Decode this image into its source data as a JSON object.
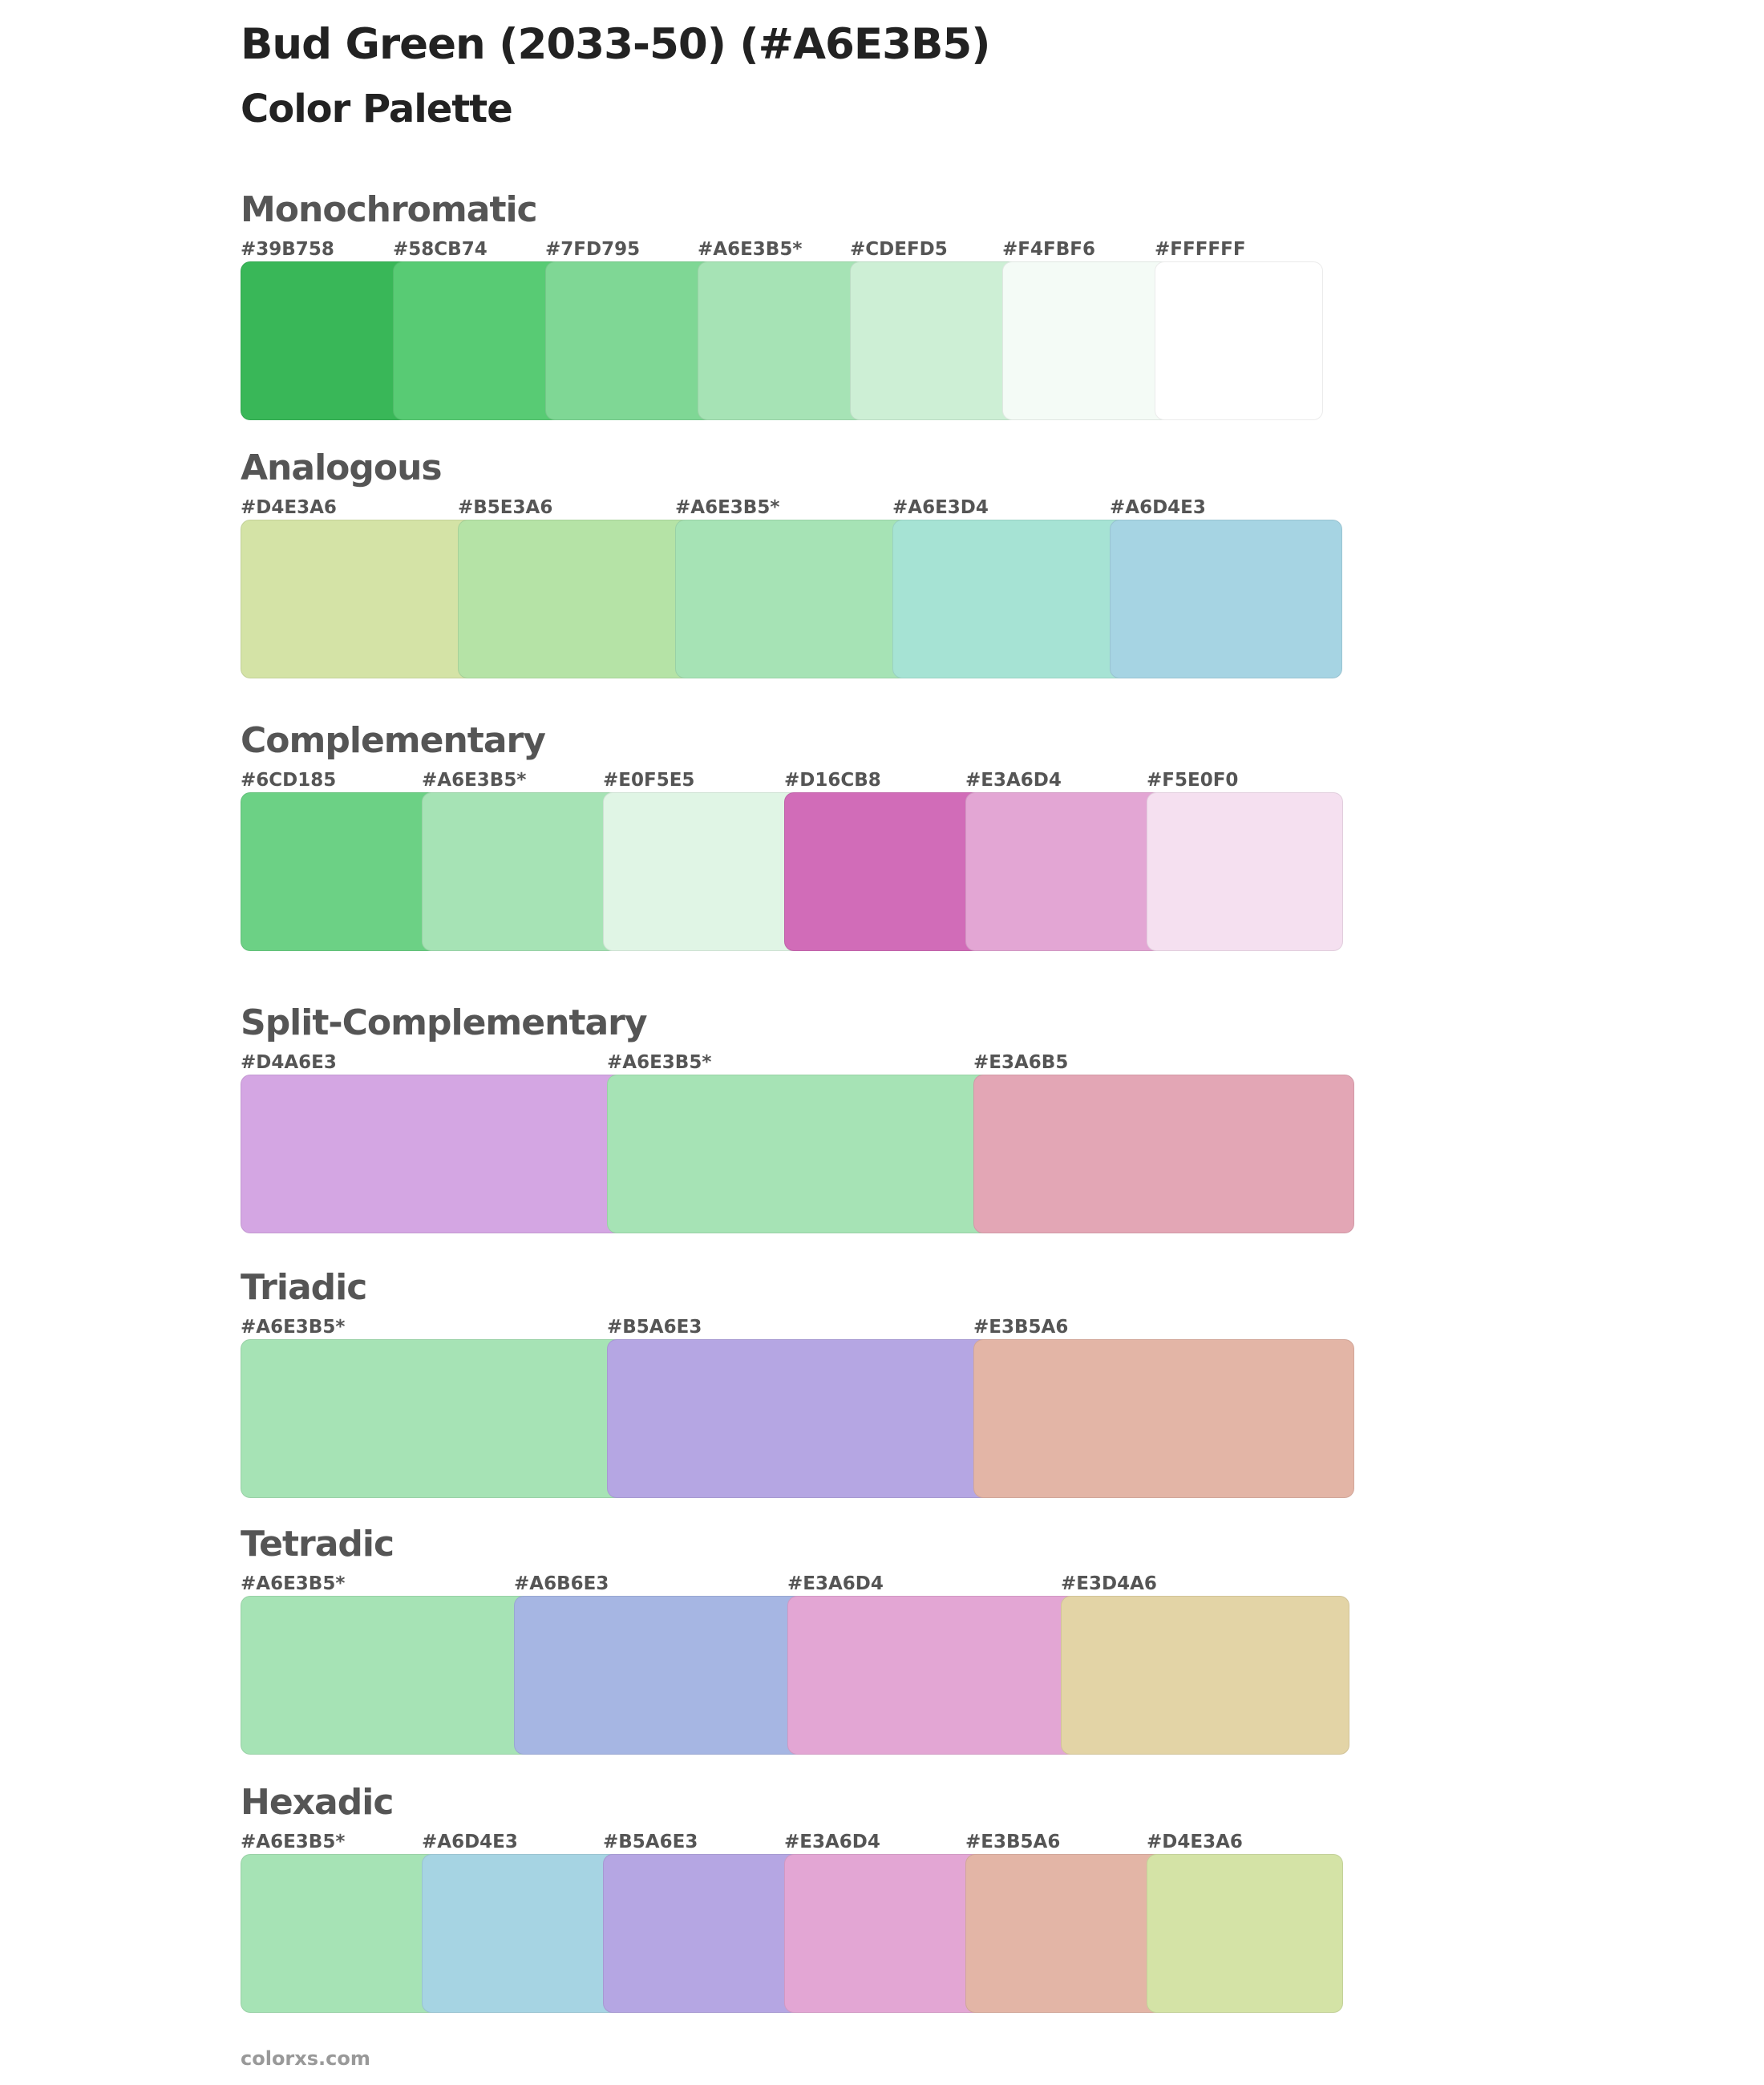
{
  "title": "Bud Green (2033-50) (#A6E3B5)",
  "subtitle": "Color Palette",
  "sections": [
    {
      "name": "Monochromatic",
      "swatches": [
        {
          "label": "#39B758",
          "color": "#39B758"
        },
        {
          "label": "#58CB74",
          "color": "#58CB74"
        },
        {
          "label": "#7FD795",
          "color": "#7FD795"
        },
        {
          "label": "#A6E3B5*",
          "color": "#A6E3B5"
        },
        {
          "label": "#CDEFD5",
          "color": "#CDEFD5"
        },
        {
          "label": "#F4FBF6",
          "color": "#F4FBF6"
        },
        {
          "label": "#FFFFFF",
          "color": "#FFFFFF"
        }
      ]
    },
    {
      "name": "Analogous",
      "swatches": [
        {
          "label": "#D4E3A6",
          "color": "#D4E3A6"
        },
        {
          "label": "#B5E3A6",
          "color": "#B5E3A6"
        },
        {
          "label": "#A6E3B5*",
          "color": "#A6E3B5"
        },
        {
          "label": "#A6E3D4",
          "color": "#A6E3D4"
        },
        {
          "label": "#A6D4E3",
          "color": "#A6D4E3"
        }
      ]
    },
    {
      "name": "Complementary",
      "swatches": [
        {
          "label": "#6CD185",
          "color": "#6CD185"
        },
        {
          "label": "#A6E3B5*",
          "color": "#A6E3B5"
        },
        {
          "label": "#E0F5E5",
          "color": "#E0F5E5"
        },
        {
          "label": "#D16CB8",
          "color": "#D16CB8"
        },
        {
          "label": "#E3A6D4",
          "color": "#E3A6D4"
        },
        {
          "label": "#F5E0F0",
          "color": "#F5E0F0"
        }
      ]
    },
    {
      "name": "Split-Complementary",
      "swatches": [
        {
          "label": "#D4A6E3",
          "color": "#D4A6E3"
        },
        {
          "label": "#A6E3B5*",
          "color": "#A6E3B5"
        },
        {
          "label": "#E3A6B5",
          "color": "#E3A6B5"
        }
      ]
    },
    {
      "name": "Triadic",
      "swatches": [
        {
          "label": "#A6E3B5*",
          "color": "#A6E3B5"
        },
        {
          "label": "#B5A6E3",
          "color": "#B5A6E3"
        },
        {
          "label": "#E3B5A6",
          "color": "#E3B5A6"
        }
      ]
    },
    {
      "name": "Tetradic",
      "swatches": [
        {
          "label": "#A6E3B5*",
          "color": "#A6E3B5"
        },
        {
          "label": "#A6B6E3",
          "color": "#A6B6E3"
        },
        {
          "label": "#E3A6D4",
          "color": "#E3A6D4"
        },
        {
          "label": "#E3D4A6",
          "color": "#E3D4A6"
        }
      ]
    },
    {
      "name": "Hexadic",
      "swatches": [
        {
          "label": "#A6E3B5*",
          "color": "#A6E3B5"
        },
        {
          "label": "#A6D4E3",
          "color": "#A6D4E3"
        },
        {
          "label": "#B5A6E3",
          "color": "#B5A6E3"
        },
        {
          "label": "#E3A6D4",
          "color": "#E3A6D4"
        },
        {
          "label": "#E3B5A6",
          "color": "#E3B5A6"
        },
        {
          "label": "#D4E3A6",
          "color": "#D4E3A6"
        }
      ]
    }
  ],
  "footer": "colorxs.com"
}
